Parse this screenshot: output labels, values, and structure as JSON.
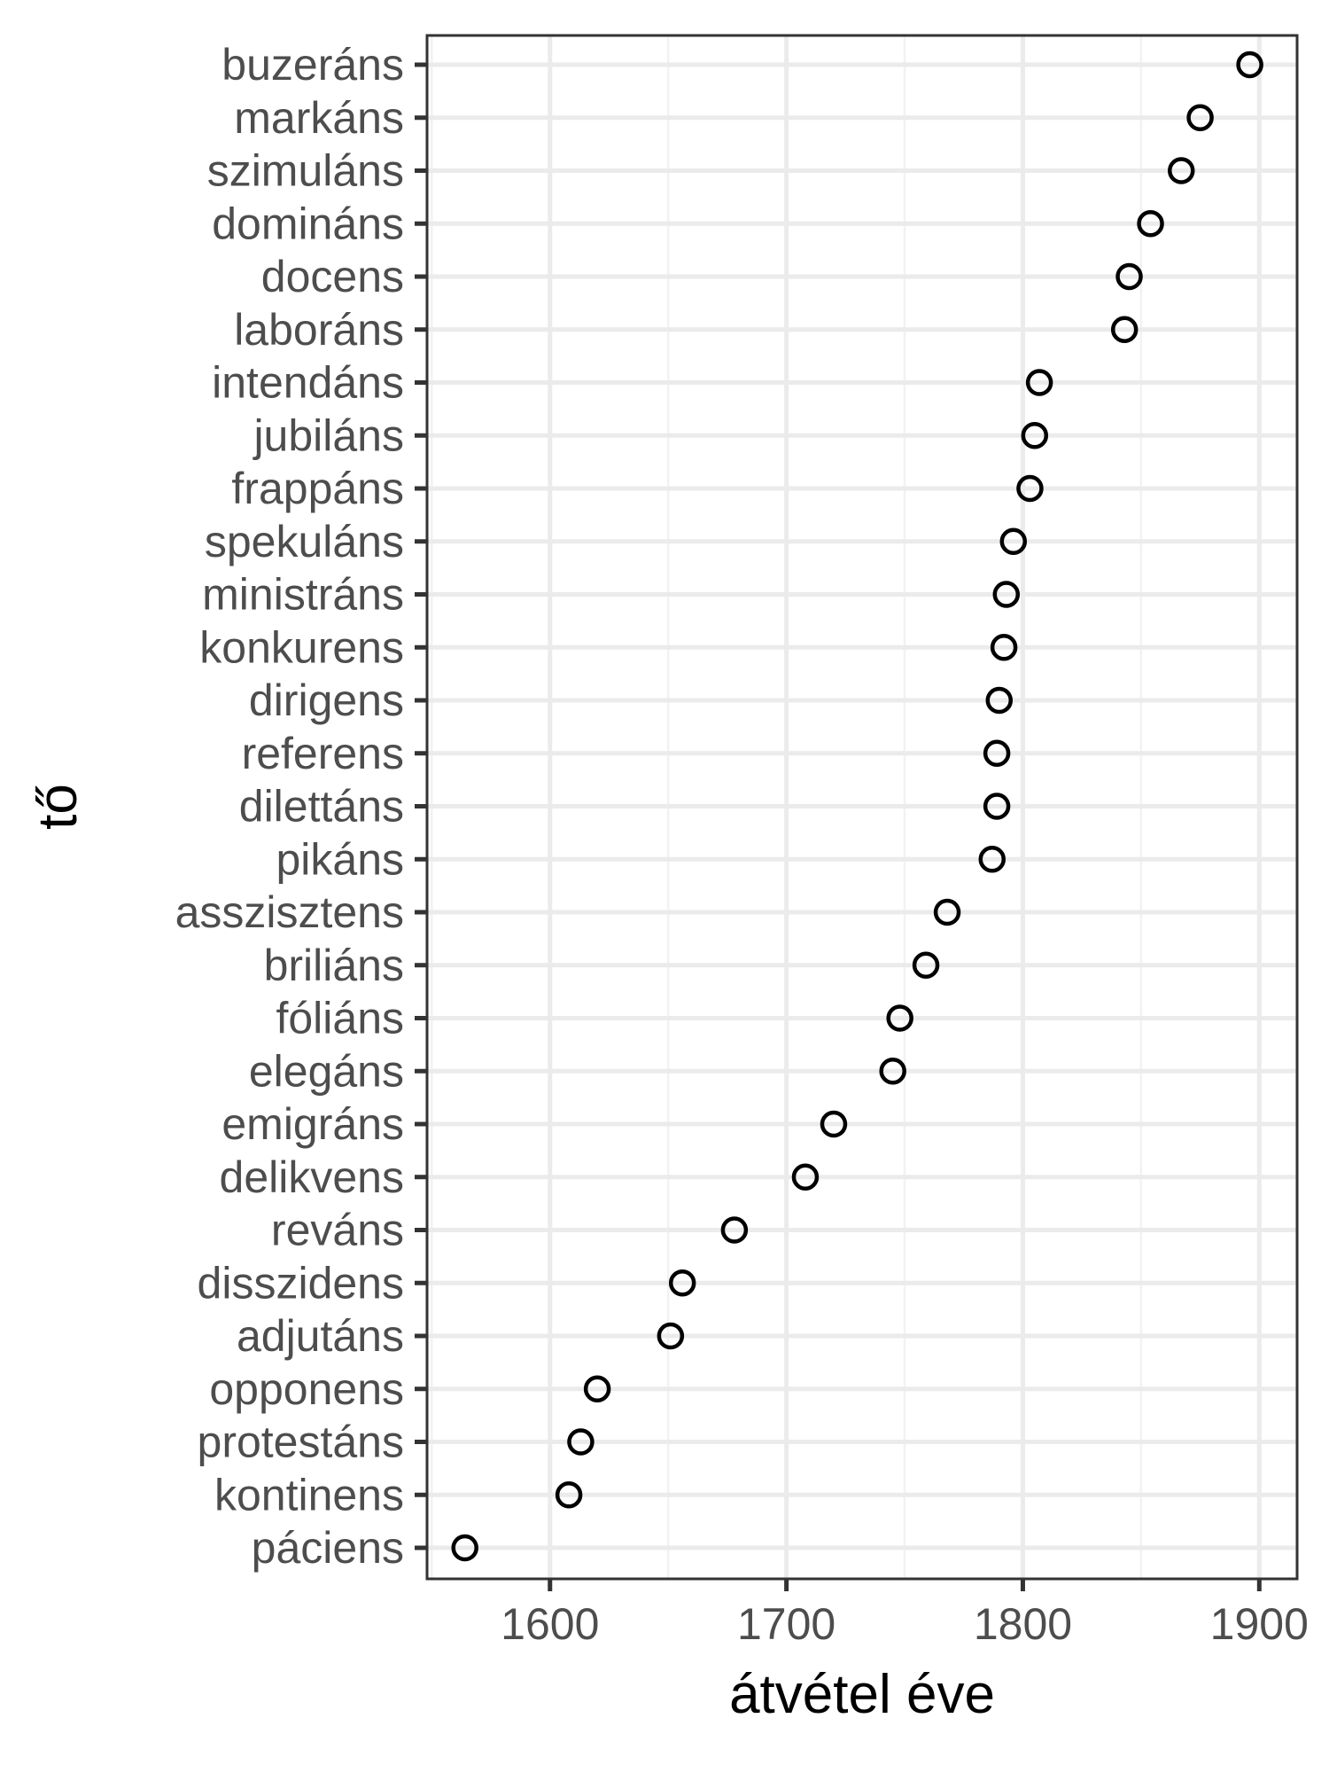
{
  "chart_data": {
    "type": "scatter",
    "xlabel": "átvétel éve",
    "ylabel": "tő",
    "xlim": [
      1548,
      1916
    ],
    "x_ticks": [
      1600,
      1700,
      1800,
      1900
    ],
    "x_minor_ticks": [
      1550,
      1650,
      1750,
      1850
    ],
    "grid": true,
    "legend": false,
    "categories": [
      "buzeráns",
      "markáns",
      "szimuláns",
      "domináns",
      "docens",
      "laboráns",
      "intendáns",
      "jubiláns",
      "frappáns",
      "spekuláns",
      "ministráns",
      "konkurens",
      "dirigens",
      "referens",
      "dilettáns",
      "pikáns",
      "asszisztens",
      "briliáns",
      "fóliáns",
      "elegáns",
      "emigráns",
      "delikvens",
      "reváns",
      "disszidens",
      "adjutáns",
      "opponens",
      "protestáns",
      "kontinens",
      "páciens"
    ],
    "values": [
      1896,
      1875,
      1867,
      1854,
      1845,
      1843,
      1807,
      1805,
      1803,
      1796,
      1793,
      1792,
      1790,
      1789,
      1789,
      1787,
      1768,
      1759,
      1748,
      1745,
      1720,
      1708,
      1678,
      1656,
      1651,
      1620,
      1613,
      1608,
      1564
    ],
    "marker": "open-circle",
    "point_color": "#000000"
  }
}
